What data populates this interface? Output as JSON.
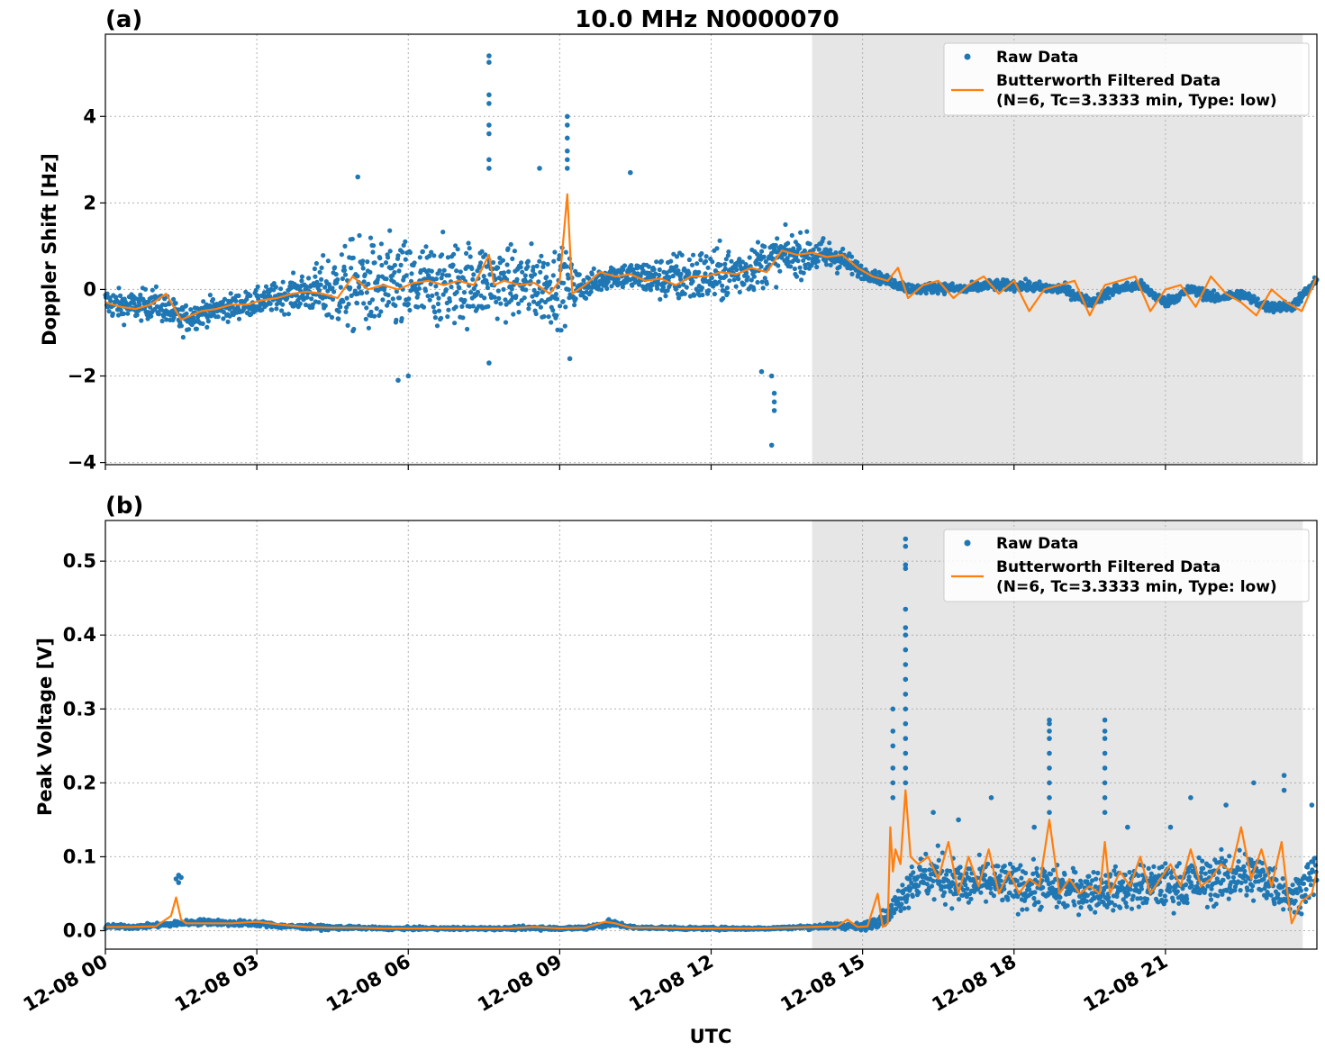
{
  "figure": {
    "title": "10.0 MHz N0000070",
    "xlabel": "UTC",
    "xticks": [
      "12-08 00",
      "12-08 03",
      "12-08 06",
      "12-08 09",
      "12-08 12",
      "12-08 15",
      "12-08 18",
      "12-08 21"
    ],
    "colors": {
      "raw": "#1f77b4",
      "filtered": "#ff7f0e",
      "shade": "#e6e6e6"
    }
  },
  "chart_data": [
    {
      "type": "scatter",
      "panel_label": "(a)",
      "ylabel": "Doppler Shift [Hz]",
      "xlim_hours": [
        0,
        24
      ],
      "ylim": [
        -4.05,
        5.9
      ],
      "yticks": [
        -4,
        -2,
        0,
        2,
        4
      ],
      "ytick_labels": [
        "−4",
        "−2",
        "0",
        "2",
        "4"
      ],
      "shaded_region_hours": [
        14,
        23.72
      ],
      "grid": true,
      "legend_position": "top-right",
      "legend": [
        "Raw Data",
        "Butterworth Filtered Data",
        "(N=6, Tc=3.3333 min, Type: low)"
      ],
      "series": [
        {
          "name": "Raw Data",
          "style": "points",
          "x": [
            0,
            0.5,
            1,
            1.5,
            2,
            2.5,
            3,
            3.5,
            4,
            4.5,
            5,
            5.5,
            6,
            6.5,
            7,
            7.5,
            8,
            8.5,
            9,
            9.5,
            10,
            10.5,
            11,
            11.5,
            12,
            12.5,
            13,
            13.5,
            14,
            14.5,
            15,
            15.5,
            16,
            16.5,
            17,
            17.5,
            18,
            18.5,
            19,
            19.5,
            20,
            20.5,
            21,
            21.5,
            22,
            22.5,
            23,
            23.5,
            24
          ],
          "y_center": [
            -0.3,
            -0.4,
            -0.3,
            -0.7,
            -0.5,
            -0.4,
            -0.3,
            -0.15,
            -0.05,
            0.0,
            0.1,
            0.05,
            0.05,
            0.1,
            0.15,
            0.2,
            0.15,
            0.1,
            0.1,
            0.05,
            0.35,
            0.3,
            0.25,
            0.3,
            0.3,
            0.4,
            0.6,
            0.8,
            0.8,
            0.75,
            0.4,
            0.2,
            0.0,
            0.05,
            0.0,
            0.1,
            0.1,
            0.05,
            0.0,
            -0.3,
            0.0,
            0.1,
            -0.3,
            0.0,
            -0.2,
            -0.1,
            -0.4,
            -0.4,
            0.2
          ],
          "y_spread": [
            0.35,
            0.35,
            0.35,
            0.35,
            0.3,
            0.3,
            0.3,
            0.35,
            0.45,
            0.9,
            1.1,
            1.1,
            1.1,
            1.0,
            1.0,
            0.9,
            0.8,
            0.9,
            0.9,
            0.3,
            0.3,
            0.35,
            0.5,
            0.65,
            0.65,
            0.6,
            0.55,
            0.5,
            0.45,
            0.35,
            0.15,
            0.12,
            0.12,
            0.12,
            0.12,
            0.12,
            0.12,
            0.12,
            0.12,
            0.12,
            0.12,
            0.12,
            0.12,
            0.12,
            0.12,
            0.12,
            0.12,
            0.12,
            0.12
          ],
          "outliers": [
            [
              7.6,
              5.4
            ],
            [
              7.6,
              5.25
            ],
            [
              7.6,
              4.5
            ],
            [
              7.6,
              4.3
            ],
            [
              7.6,
              3.8
            ],
            [
              7.6,
              3.6
            ],
            [
              7.6,
              3.0
            ],
            [
              7.6,
              2.8
            ],
            [
              9.15,
              4.0
            ],
            [
              9.15,
              3.8
            ],
            [
              9.15,
              3.5
            ],
            [
              9.15,
              3.2
            ],
            [
              9.15,
              3.0
            ],
            [
              9.15,
              2.8
            ],
            [
              5.0,
              2.6
            ],
            [
              10.4,
              2.7
            ],
            [
              8.6,
              2.8
            ],
            [
              13.2,
              -3.6
            ],
            [
              13.25,
              -2.8
            ],
            [
              13.25,
              -2.6
            ],
            [
              13.25,
              -2.4
            ],
            [
              13.2,
              -2.0
            ],
            [
              5.8,
              -2.1
            ],
            [
              6.0,
              -2.0
            ],
            [
              13.0,
              -1.9
            ],
            [
              9.2,
              -1.6
            ],
            [
              7.6,
              -1.7
            ]
          ]
        },
        {
          "name": "Butterworth Filtered Data",
          "style": "line",
          "x": [
            0,
            0.3,
            0.6,
            0.9,
            1.2,
            1.5,
            1.7,
            1.9,
            2.2,
            2.5,
            2.8,
            3.1,
            3.4,
            3.7,
            4.0,
            4.3,
            4.6,
            4.9,
            5.2,
            5.5,
            5.8,
            6.1,
            6.4,
            6.7,
            7.0,
            7.3,
            7.6,
            7.7,
            7.9,
            8.2,
            8.5,
            8.8,
            9.0,
            9.15,
            9.25,
            9.5,
            9.8,
            10.1,
            10.4,
            10.7,
            11.0,
            11.3,
            11.6,
            11.9,
            12.2,
            12.5,
            12.8,
            13.1,
            13.4,
            13.7,
            14.0,
            14.3,
            14.6,
            14.9,
            15.2,
            15.5,
            15.7,
            15.9,
            16.2,
            16.5,
            16.8,
            17.1,
            17.4,
            17.7,
            18.0,
            18.3,
            18.6,
            18.9,
            19.2,
            19.5,
            19.8,
            20.1,
            20.4,
            20.7,
            21.0,
            21.3,
            21.6,
            21.9,
            22.2,
            22.5,
            22.8,
            23.1,
            23.4,
            23.7,
            24.0
          ],
          "y": [
            -0.3,
            -0.4,
            -0.45,
            -0.35,
            -0.1,
            -0.7,
            -0.6,
            -0.5,
            -0.45,
            -0.35,
            -0.35,
            -0.25,
            -0.2,
            -0.1,
            -0.05,
            -0.1,
            -0.2,
            0.3,
            0.0,
            0.1,
            0.0,
            0.15,
            0.2,
            0.1,
            0.2,
            0.1,
            0.8,
            0.1,
            0.2,
            0.1,
            0.15,
            -0.1,
            0.2,
            2.2,
            -0.1,
            0.1,
            0.4,
            0.3,
            0.35,
            0.2,
            0.25,
            0.1,
            0.3,
            0.3,
            0.4,
            0.35,
            0.5,
            0.4,
            0.9,
            0.8,
            0.85,
            0.75,
            0.8,
            0.5,
            0.3,
            0.2,
            0.5,
            -0.2,
            0.1,
            0.2,
            -0.2,
            0.1,
            0.3,
            -0.1,
            0.2,
            -0.5,
            0.0,
            0.1,
            0.2,
            -0.6,
            0.1,
            0.2,
            0.3,
            -0.5,
            0.0,
            0.1,
            -0.4,
            0.3,
            -0.1,
            -0.3,
            -0.6,
            0.0,
            -0.3,
            -0.5,
            0.3
          ]
        }
      ]
    },
    {
      "type": "scatter",
      "panel_label": "(b)",
      "ylabel": "Peak Voltage [V]",
      "xlim_hours": [
        0,
        24
      ],
      "ylim": [
        -0.025,
        0.555
      ],
      "yticks": [
        0.0,
        0.1,
        0.2,
        0.3,
        0.4,
        0.5
      ],
      "ytick_labels": [
        "0.0",
        "0.1",
        "0.2",
        "0.3",
        "0.4",
        "0.5"
      ],
      "shaded_region_hours": [
        14,
        23.72
      ],
      "grid": true,
      "legend_position": "top-right",
      "legend": [
        "Raw Data",
        "Butterworth Filtered Data",
        "(N=6, Tc=3.3333 min, Type: low)"
      ],
      "series": [
        {
          "name": "Raw Data",
          "style": "points",
          "x": [
            0,
            0.5,
            1,
            1.5,
            2,
            2.5,
            3,
            3.5,
            4,
            4.5,
            5,
            5.5,
            6,
            6.5,
            7,
            7.5,
            8,
            8.5,
            9,
            9.5,
            10,
            10.5,
            11,
            11.5,
            12,
            12.5,
            13,
            13.5,
            14,
            14.5,
            15,
            15.5,
            16,
            16.5,
            17,
            17.5,
            18,
            18.5,
            19,
            19.5,
            20,
            20.5,
            21,
            21.5,
            22,
            22.5,
            23,
            23.5,
            24
          ],
          "y_center": [
            0.006,
            0.005,
            0.007,
            0.01,
            0.012,
            0.01,
            0.01,
            0.006,
            0.005,
            0.004,
            0.004,
            0.003,
            0.003,
            0.003,
            0.003,
            0.003,
            0.003,
            0.004,
            0.003,
            0.004,
            0.01,
            0.004,
            0.004,
            0.003,
            0.003,
            0.003,
            0.003,
            0.004,
            0.005,
            0.007,
            0.005,
            0.02,
            0.07,
            0.075,
            0.06,
            0.065,
            0.06,
            0.06,
            0.055,
            0.055,
            0.055,
            0.06,
            0.06,
            0.065,
            0.07,
            0.075,
            0.07,
            0.045,
            0.08
          ],
          "y_spread": [
            0.003,
            0.003,
            0.003,
            0.004,
            0.004,
            0.004,
            0.004,
            0.003,
            0.003,
            0.003,
            0.002,
            0.002,
            0.002,
            0.002,
            0.002,
            0.002,
            0.002,
            0.003,
            0.002,
            0.003,
            0.005,
            0.002,
            0.002,
            0.002,
            0.002,
            0.002,
            0.002,
            0.002,
            0.003,
            0.004,
            0.005,
            0.01,
            0.03,
            0.035,
            0.03,
            0.03,
            0.03,
            0.03,
            0.028,
            0.028,
            0.028,
            0.03,
            0.03,
            0.03,
            0.035,
            0.035,
            0.035,
            0.02,
            0.04
          ],
          "outliers": [
            [
              15.85,
              0.53
            ],
            [
              15.85,
              0.52
            ],
            [
              15.85,
              0.495
            ],
            [
              15.85,
              0.49
            ],
            [
              15.85,
              0.435
            ],
            [
              15.85,
              0.41
            ],
            [
              15.85,
              0.4
            ],
            [
              15.85,
              0.38
            ],
            [
              15.85,
              0.36
            ],
            [
              15.85,
              0.34
            ],
            [
              15.85,
              0.32
            ],
            [
              15.85,
              0.3
            ],
            [
              15.85,
              0.28
            ],
            [
              15.85,
              0.26
            ],
            [
              15.85,
              0.24
            ],
            [
              15.85,
              0.22
            ],
            [
              15.85,
              0.2
            ],
            [
              15.6,
              0.3
            ],
            [
              15.6,
              0.27
            ],
            [
              15.6,
              0.25
            ],
            [
              15.6,
              0.22
            ],
            [
              15.6,
              0.2
            ],
            [
              15.6,
              0.18
            ],
            [
              18.7,
              0.285
            ],
            [
              18.7,
              0.28
            ],
            [
              18.7,
              0.27
            ],
            [
              18.7,
              0.26
            ],
            [
              18.7,
              0.24
            ],
            [
              18.7,
              0.22
            ],
            [
              18.7,
              0.2
            ],
            [
              18.7,
              0.18
            ],
            [
              18.7,
              0.16
            ],
            [
              19.8,
              0.285
            ],
            [
              19.8,
              0.27
            ],
            [
              19.8,
              0.26
            ],
            [
              19.8,
              0.24
            ],
            [
              19.8,
              0.22
            ],
            [
              19.8,
              0.2
            ],
            [
              19.8,
              0.18
            ],
            [
              19.8,
              0.16
            ],
            [
              1.45,
              0.075
            ],
            [
              1.4,
              0.07
            ],
            [
              1.5,
              0.072
            ],
            [
              1.45,
              0.065
            ],
            [
              23.35,
              0.21
            ],
            [
              23.35,
              0.19
            ],
            [
              22.75,
              0.2
            ],
            [
              23.9,
              0.17
            ],
            [
              16.9,
              0.15
            ],
            [
              17.55,
              0.18
            ],
            [
              18.4,
              0.14
            ],
            [
              20.25,
              0.14
            ],
            [
              21.5,
              0.18
            ],
            [
              22.2,
              0.17
            ],
            [
              21.1,
              0.14
            ],
            [
              16.4,
              0.16
            ]
          ]
        },
        {
          "name": "Butterworth Filtered Data",
          "style": "line",
          "x": [
            0,
            0.5,
            1.0,
            1.3,
            1.4,
            1.5,
            1.6,
            2.0,
            2.5,
            3.0,
            3.5,
            4.0,
            4.5,
            5.0,
            5.5,
            6.0,
            6.5,
            7.0,
            7.5,
            8.0,
            8.5,
            9.0,
            9.5,
            9.9,
            10.1,
            10.4,
            10.8,
            11.5,
            12.0,
            12.5,
            13.0,
            13.5,
            14.0,
            14.5,
            14.7,
            14.9,
            15.1,
            15.3,
            15.4,
            15.5,
            15.55,
            15.6,
            15.65,
            15.75,
            15.85,
            15.95,
            16.1,
            16.3,
            16.5,
            16.7,
            16.9,
            17.1,
            17.3,
            17.5,
            17.7,
            17.9,
            18.1,
            18.3,
            18.5,
            18.7,
            18.9,
            19.1,
            19.3,
            19.5,
            19.7,
            19.8,
            19.9,
            20.1,
            20.3,
            20.5,
            20.7,
            20.9,
            21.1,
            21.3,
            21.5,
            21.7,
            21.9,
            22.1,
            22.3,
            22.5,
            22.7,
            22.9,
            23.1,
            23.3,
            23.4,
            23.5,
            23.7,
            23.9,
            24.0
          ],
          "y": [
            0.005,
            0.005,
            0.006,
            0.02,
            0.045,
            0.015,
            0.01,
            0.01,
            0.01,
            0.012,
            0.008,
            0.005,
            0.004,
            0.004,
            0.003,
            0.003,
            0.003,
            0.003,
            0.003,
            0.003,
            0.005,
            0.003,
            0.004,
            0.012,
            0.01,
            0.004,
            0.004,
            0.003,
            0.003,
            0.003,
            0.003,
            0.004,
            0.005,
            0.006,
            0.015,
            0.005,
            0.006,
            0.05,
            0.005,
            0.01,
            0.14,
            0.08,
            0.11,
            0.09,
            0.19,
            0.1,
            0.09,
            0.1,
            0.07,
            0.12,
            0.05,
            0.1,
            0.06,
            0.11,
            0.05,
            0.08,
            0.05,
            0.07,
            0.06,
            0.15,
            0.05,
            0.07,
            0.05,
            0.06,
            0.05,
            0.12,
            0.05,
            0.08,
            0.06,
            0.1,
            0.05,
            0.07,
            0.09,
            0.06,
            0.11,
            0.06,
            0.07,
            0.09,
            0.08,
            0.14,
            0.07,
            0.11,
            0.06,
            0.12,
            0.06,
            0.01,
            0.04,
            0.05,
            0.08
          ]
        }
      ]
    }
  ]
}
